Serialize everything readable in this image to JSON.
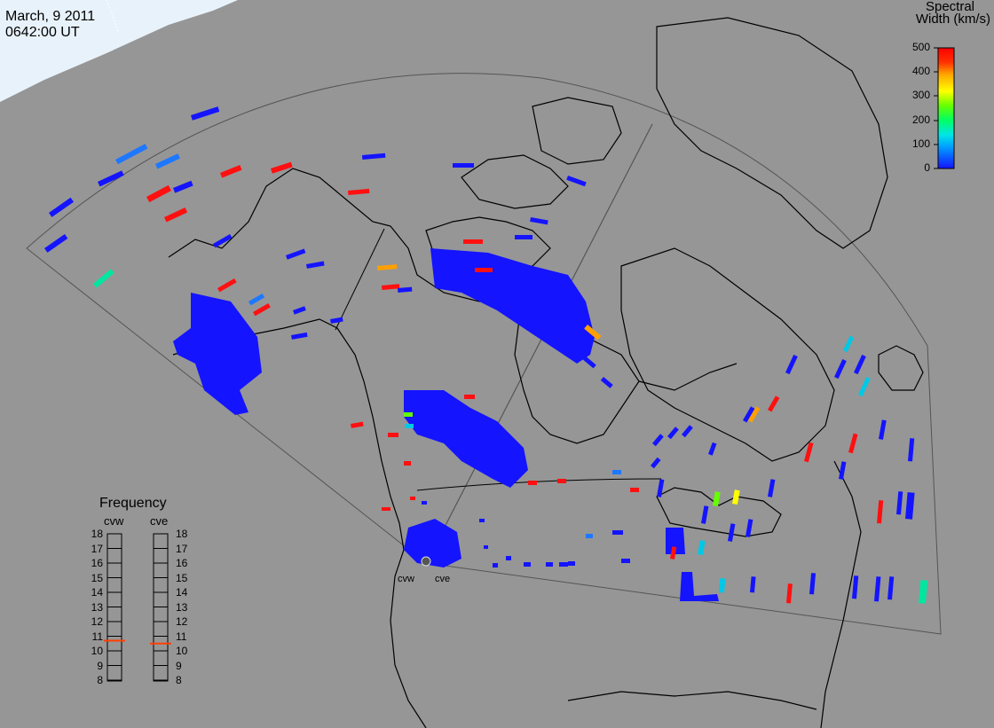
{
  "header": {
    "date": "March, 9 2011",
    "time": "0642:00 UT"
  },
  "colorbar": {
    "title_line1": "Spectral",
    "title_line2": "Width (km/s)",
    "ticks": [
      "500",
      "400",
      "300",
      "200",
      "100",
      "0"
    ],
    "range": [
      0,
      500
    ],
    "colors": [
      "#1414ff",
      "#00a0ff",
      "#00e6e6",
      "#00ff64",
      "#64ff00",
      "#ffff00",
      "#ffa500",
      "#ff3200",
      "#ff0000"
    ]
  },
  "frequency_panel": {
    "title": "Frequency",
    "radars": [
      "cvw",
      "cve"
    ],
    "scale": [
      "18",
      "17",
      "16",
      "15",
      "14",
      "13",
      "12",
      "11",
      "10",
      "9",
      "8"
    ],
    "marker_color": "#ff4000",
    "current_mhz": [
      10.7,
      10.5
    ]
  },
  "radar_sites": [
    "cvw",
    "cve"
  ],
  "colors": {
    "background": "#969696",
    "land_outline": "#000000",
    "fov_outline": "#404040",
    "dominant_echo": "#1414ff",
    "daylight": "#e8f2fa"
  }
}
